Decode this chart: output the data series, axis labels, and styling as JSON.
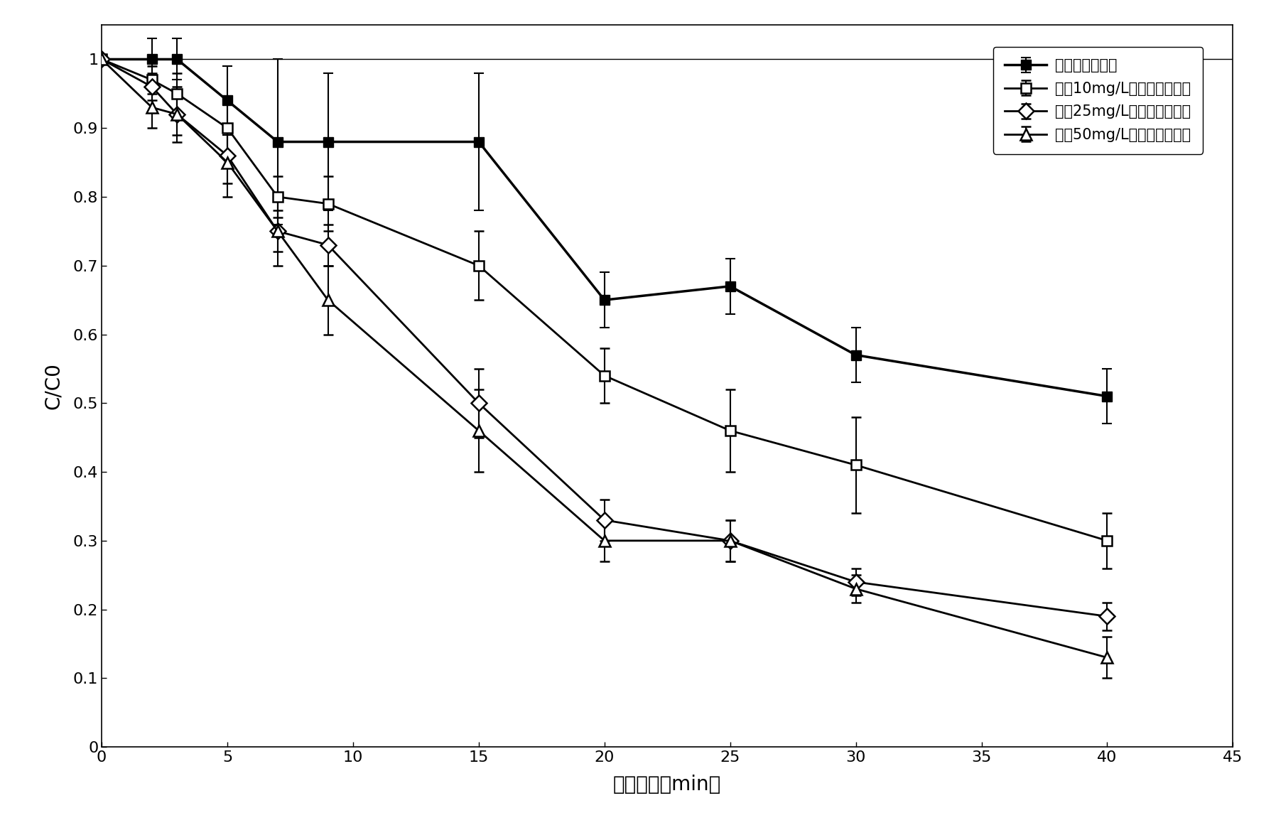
{
  "series": [
    {
      "label": "不加炭臭氧分解",
      "x": [
        0,
        2,
        3,
        5,
        7,
        9,
        15,
        20,
        25,
        30,
        40
      ],
      "y": [
        1.0,
        1.0,
        1.0,
        0.94,
        0.88,
        0.88,
        0.88,
        0.65,
        0.67,
        0.57,
        0.51
      ],
      "yerr": [
        0.0,
        0.03,
        0.03,
        0.05,
        0.12,
        0.1,
        0.1,
        0.04,
        0.04,
        0.04,
        0.04
      ],
      "marker": "s",
      "fillstyle": "full",
      "linewidth": 2.5,
      "markersize": 10
    },
    {
      "label": "加入10mg/L活性炭臭氧衰减",
      "x": [
        0,
        2,
        3,
        5,
        7,
        9,
        15,
        20,
        25,
        30,
        40
      ],
      "y": [
        1.0,
        0.97,
        0.95,
        0.9,
        0.8,
        0.79,
        0.7,
        0.54,
        0.46,
        0.41,
        0.3
      ],
      "yerr": [
        0.0,
        0.02,
        0.03,
        0.04,
        0.03,
        0.04,
        0.05,
        0.04,
        0.06,
        0.07,
        0.04
      ],
      "marker": "s",
      "fillstyle": "none",
      "linewidth": 2.0,
      "markersize": 10
    },
    {
      "label": "加入25mg/L活性炭臭氧衰减",
      "x": [
        0,
        2,
        3,
        5,
        7,
        9,
        15,
        20,
        25,
        30,
        40
      ],
      "y": [
        1.0,
        0.96,
        0.92,
        0.86,
        0.75,
        0.73,
        0.5,
        0.33,
        0.3,
        0.24,
        0.19
      ],
      "yerr": [
        0.0,
        0.02,
        0.03,
        0.04,
        0.03,
        0.03,
        0.05,
        0.03,
        0.03,
        0.02,
        0.02
      ],
      "marker": "D",
      "fillstyle": "none",
      "linewidth": 2.0,
      "markersize": 11
    },
    {
      "label": "加入50mg/L活性炭臭氧衰减",
      "x": [
        0,
        2,
        3,
        5,
        7,
        9,
        15,
        20,
        25,
        30,
        40
      ],
      "y": [
        1.0,
        0.93,
        0.92,
        0.85,
        0.75,
        0.65,
        0.46,
        0.3,
        0.3,
        0.23,
        0.13
      ],
      "yerr": [
        0.0,
        0.03,
        0.04,
        0.05,
        0.05,
        0.05,
        0.06,
        0.03,
        0.03,
        0.02,
        0.03
      ],
      "marker": "^",
      "fillstyle": "none",
      "linewidth": 2.0,
      "markersize": 12
    }
  ],
  "xlabel": "反应时间（min）",
  "ylabel": "C/C0",
  "xlim": [
    0,
    45
  ],
  "ylim": [
    0,
    1.05
  ],
  "xticks": [
    0,
    5,
    10,
    15,
    20,
    25,
    30,
    35,
    40,
    45
  ],
  "yticks": [
    0,
    0.1,
    0.2,
    0.3,
    0.4,
    0.5,
    0.6,
    0.7,
    0.8,
    0.9,
    1.0
  ],
  "ytick_labels": [
    "0",
    "0.1",
    "0.2",
    "0.3",
    "0.4",
    "0.5",
    "0.6",
    "0.7",
    "0.8",
    "0.9",
    "1"
  ],
  "background_color": "#ffffff",
  "legend_loc": "upper right",
  "tick_font_size": 16,
  "label_font_size": 20,
  "legend_font_size": 15
}
